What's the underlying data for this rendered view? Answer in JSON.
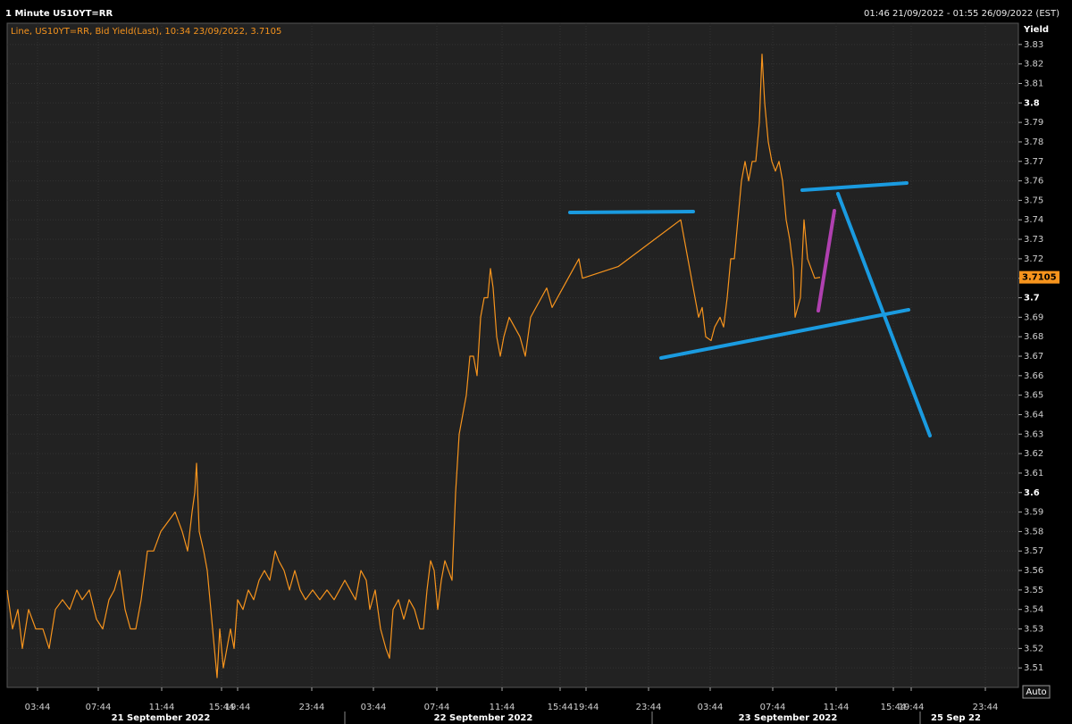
{
  "chart_data": {
    "type": "line",
    "title": "1 Minute US10YT=RR",
    "range_label": "01:46 21/09/2022 - 01:55 26/09/2022 (EST)",
    "legend_label": "Line, US10YT=RR, Bid Yield(Last), 10:34 23/09/2022, 3.7105",
    "y_label": "Yield",
    "auto_button": "Auto",
    "last_value": 3.7105,
    "color": "#f7941d",
    "grid": true,
    "ylim": [
      3.5,
      3.84
    ],
    "yticks": [
      3.51,
      3.52,
      3.53,
      3.54,
      3.55,
      3.56,
      3.57,
      3.58,
      3.59,
      3.6,
      3.61,
      3.62,
      3.63,
      3.64,
      3.65,
      3.66,
      3.67,
      3.68,
      3.69,
      3.7,
      3.71,
      3.72,
      3.73,
      3.74,
      3.75,
      3.76,
      3.77,
      3.78,
      3.79,
      3.8,
      3.81,
      3.82,
      3.83
    ],
    "xlim": [
      0,
      113.2
    ],
    "xticks": [
      {
        "value": 3.4,
        "label": "03:44"
      },
      {
        "value": 10.2,
        "label": "07:44"
      },
      {
        "value": 17.3,
        "label": "11:44"
      },
      {
        "value": 24.0,
        "label": "15:44"
      },
      {
        "value": 25.8,
        "label": "19:44"
      },
      {
        "value": 34.1,
        "label": "23:44"
      },
      {
        "value": 41.0,
        "label": "03:44"
      },
      {
        "value": 48.1,
        "label": "07:44"
      },
      {
        "value": 55.4,
        "label": "11:44"
      },
      {
        "value": 61.9,
        "label": "15:44"
      },
      {
        "value": 64.8,
        "label": "19:44"
      },
      {
        "value": 71.8,
        "label": "23:44"
      },
      {
        "value": 78.7,
        "label": "03:44"
      },
      {
        "value": 85.7,
        "label": "07:44"
      },
      {
        "value": 92.8,
        "label": "11:44"
      },
      {
        "value": 99.2,
        "label": "15:44"
      },
      {
        "value": 101.2,
        "label": "19:44"
      },
      {
        "value": 109.5,
        "label": "23:44"
      }
    ],
    "date_labels": [
      {
        "value": 17.2,
        "label": "21 September 2022"
      },
      {
        "value": 53.3,
        "label": "22 September 2022"
      },
      {
        "value": 87.4,
        "label": "23 September 2022"
      },
      {
        "value": 106.2,
        "label": "25 Sep 22"
      }
    ],
    "x": [
      0,
      0.6,
      1.2,
      1.7,
      2.4,
      3.2,
      4.0,
      4.7,
      5.4,
      6.2,
      7.0,
      7.8,
      8.4,
      9.2,
      10.0,
      10.7,
      11.4,
      12.0,
      12.6,
      13.2,
      13.8,
      14.4,
      15.0,
      15.7,
      16.4,
      17.2,
      18.0,
      18.8,
      19.6,
      20.2,
      20.7,
      21.0,
      21.2,
      21.5,
      22.0,
      22.4,
      22.8,
      23.2,
      23.5,
      23.8,
      24.2,
      24.6,
      25.0,
      25.4,
      25.8,
      26.4,
      27.0,
      27.6,
      28.2,
      28.8,
      29.4,
      30.0,
      30.4,
      31.0,
      31.6,
      32.2,
      32.8,
      33.4,
      34.2,
      35.0,
      35.8,
      36.6,
      37.2,
      37.8,
      38.4,
      39.0,
      39.6,
      40.2,
      40.6,
      41.2,
      41.8,
      42.4,
      42.8,
      43.2,
      43.8,
      44.4,
      45.0,
      45.6,
      46.2,
      46.6,
      47.0,
      47.4,
      47.8,
      48.2,
      48.6,
      49.0,
      49.4,
      49.8,
      50.2,
      50.6,
      51.0,
      51.4,
      51.8,
      52.2,
      52.6,
      53.0,
      53.4,
      53.8,
      54.1,
      54.4,
      54.8,
      55.2,
      55.6,
      56.2,
      56.8,
      57.4,
      58.0,
      58.6,
      59.2,
      59.8,
      60.4,
      61.0,
      61.6,
      62.2,
      62.8,
      63.4,
      64.0,
      64.4,
      68.4,
      75.4,
      75.8,
      76.2,
      76.6,
      77.0,
      77.4,
      77.8,
      78.2,
      78.8,
      79.2,
      79.8,
      80.2,
      80.6,
      81.0,
      81.4,
      81.8,
      82.2,
      82.6,
      83.0,
      83.4,
      83.8,
      84.2,
      84.5,
      84.8,
      85.2,
      85.6,
      86.0,
      86.4,
      86.8,
      87.2,
      87.6,
      88.0,
      88.2,
      88.5,
      88.8,
      89.2,
      89.6,
      90.0,
      90.4,
      91.0
    ],
    "series": [
      {
        "name": "US10YT=RR",
        "values": [
          3.55,
          3.53,
          3.54,
          3.52,
          3.54,
          3.53,
          3.53,
          3.52,
          3.54,
          3.545,
          3.54,
          3.55,
          3.545,
          3.55,
          3.535,
          3.53,
          3.545,
          3.55,
          3.56,
          3.54,
          3.53,
          3.53,
          3.545,
          3.57,
          3.57,
          3.58,
          3.585,
          3.59,
          3.58,
          3.57,
          3.59,
          3.6,
          3.615,
          3.58,
          3.57,
          3.56,
          3.54,
          3.52,
          3.505,
          3.53,
          3.51,
          3.52,
          3.53,
          3.52,
          3.545,
          3.54,
          3.55,
          3.545,
          3.555,
          3.56,
          3.555,
          3.57,
          3.565,
          3.56,
          3.55,
          3.56,
          3.55,
          3.545,
          3.55,
          3.545,
          3.55,
          3.545,
          3.55,
          3.555,
          3.55,
          3.545,
          3.56,
          3.555,
          3.54,
          3.55,
          3.53,
          3.52,
          3.515,
          3.54,
          3.545,
          3.535,
          3.545,
          3.54,
          3.53,
          3.53,
          3.55,
          3.565,
          3.56,
          3.54,
          3.555,
          3.565,
          3.56,
          3.555,
          3.6,
          3.63,
          3.64,
          3.65,
          3.67,
          3.67,
          3.66,
          3.69,
          3.7,
          3.7,
          3.715,
          3.705,
          3.68,
          3.67,
          3.68,
          3.69,
          3.685,
          3.68,
          3.67,
          3.69,
          3.695,
          3.7,
          3.705,
          3.695,
          3.7,
          3.705,
          3.71,
          3.715,
          3.72,
          3.71,
          3.716,
          3.74,
          3.73,
          3.72,
          3.71,
          3.7,
          3.69,
          3.695,
          3.68,
          3.678,
          3.685,
          3.69,
          3.685,
          3.7,
          3.72,
          3.72,
          3.74,
          3.76,
          3.77,
          3.76,
          3.77,
          3.77,
          3.79,
          3.825,
          3.8,
          3.78,
          3.77,
          3.765,
          3.77,
          3.76,
          3.74,
          3.73,
          3.715,
          3.69,
          3.695,
          3.7,
          3.74,
          3.72,
          3.715,
          3.71,
          3.7105
        ]
      }
    ]
  }
}
